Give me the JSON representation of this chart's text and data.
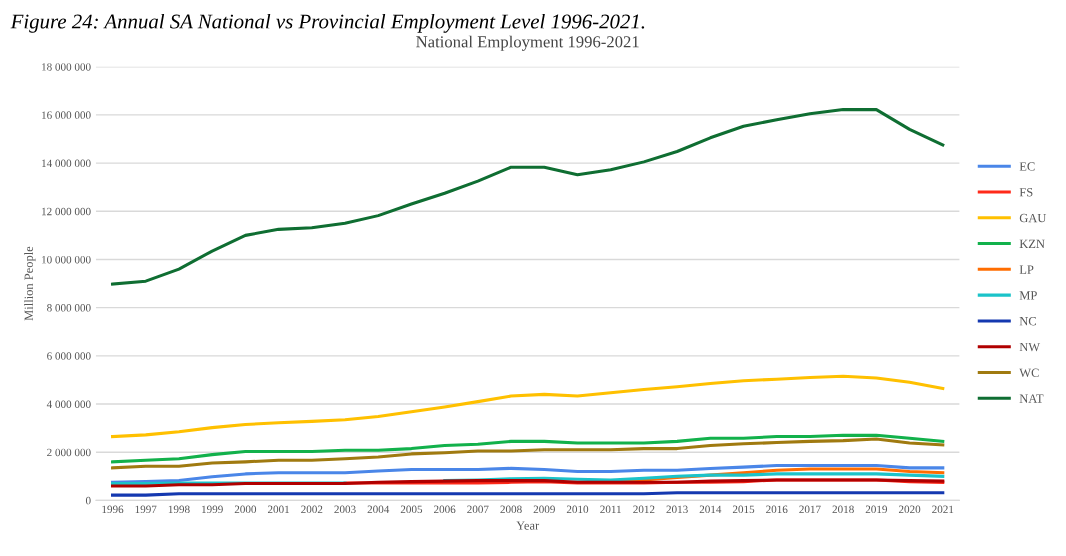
{
  "chart_data": {
    "type": "line",
    "title": "National Employment 1996-2021",
    "xlabel": "Year",
    "ylabel": "Million People",
    "annotations": [
      "Figure 24: Annual SA National vs Provincial Employment Level 1996-2021."
    ],
    "categories": [
      "1996",
      "1997",
      "1998",
      "1999",
      "2000",
      "2001",
      "2002",
      "2003",
      "2004",
      "2005",
      "2006",
      "2007",
      "2008",
      "2009",
      "2010",
      "2011",
      "2012",
      "2013",
      "2014",
      "2015",
      "2016",
      "2017",
      "2018",
      "2019",
      "2020",
      "2021"
    ],
    "ylim": [
      0,
      18000000
    ],
    "yticks": [
      0,
      {
        "value": 2000000,
        "label": "2 000 000"
      },
      {
        "value": 4000000,
        "label": "4 000 000"
      },
      {
        "value": 6000000,
        "label": "6 000 000"
      },
      {
        "value": 8000000,
        "label": "8 000 000"
      },
      {
        "value": 10000000,
        "label": "10 000 000"
      },
      {
        "value": 12000000,
        "label": "12 000 000"
      },
      {
        "value": 14000000,
        "label": "14 000 000"
      },
      {
        "value": 16000000,
        "label": "16 000 000"
      },
      {
        "value": 18000000,
        "label": "18 000 000"
      }
    ],
    "grid": "y",
    "legend": "right",
    "marker": "none",
    "line_style": "solid",
    "series": [
      {
        "name": "EC",
        "color": "#4a86e8",
        "values": [
          750000,
          780000,
          830000,
          980000,
          1100000,
          1150000,
          1150000,
          1150000,
          1220000,
          1280000,
          1280000,
          1280000,
          1330000,
          1280000,
          1200000,
          1200000,
          1250000,
          1250000,
          1320000,
          1380000,
          1450000,
          1450000,
          1450000,
          1450000,
          1350000,
          1350000
        ]
      },
      {
        "name": "FS",
        "color": "#ff2a1a",
        "values": [
          null,
          null,
          null,
          null,
          null,
          null,
          null,
          720000,
          720000,
          720000,
          720000,
          720000,
          750000,
          780000,
          720000,
          720000,
          720000,
          750000,
          750000,
          780000,
          850000,
          850000,
          850000,
          850000,
          780000,
          750000
        ]
      },
      {
        "name": "GAU",
        "color": "#ffc000",
        "values": [
          2650000,
          2720000,
          2850000,
          3020000,
          3150000,
          3220000,
          3280000,
          3350000,
          3480000,
          3680000,
          3880000,
          4100000,
          4330000,
          4400000,
          4330000,
          4470000,
          4600000,
          4720000,
          4850000,
          4970000,
          5030000,
          5100000,
          5150000,
          5080000,
          4900000,
          4650000
        ]
      },
      {
        "name": "KZN",
        "color": "#12b14b",
        "values": [
          1600000,
          1670000,
          1730000,
          1900000,
          2030000,
          2030000,
          2030000,
          2080000,
          2080000,
          2150000,
          2280000,
          2330000,
          2450000,
          2450000,
          2380000,
          2380000,
          2380000,
          2450000,
          2580000,
          2580000,
          2650000,
          2650000,
          2700000,
          2700000,
          2580000,
          2450000
        ]
      },
      {
        "name": "LP",
        "color": "#ff6d01",
        "values": [
          null,
          null,
          null,
          null,
          null,
          null,
          null,
          null,
          null,
          null,
          null,
          null,
          null,
          null,
          null,
          800000,
          850000,
          950000,
          1050000,
          1150000,
          1250000,
          1300000,
          1300000,
          1300000,
          1200000,
          1150000
        ]
      },
      {
        "name": "MP",
        "color": "#1bc3c9",
        "values": [
          700000,
          700000,
          720000,
          720000,
          720000,
          720000,
          720000,
          720000,
          null,
          null,
          820000,
          850000,
          900000,
          920000,
          880000,
          850000,
          920000,
          1000000,
          1050000,
          1050000,
          1100000,
          1100000,
          1100000,
          1100000,
          1050000,
          1000000
        ]
      },
      {
        "name": "NC",
        "color": "#1438b0",
        "values": [
          220000,
          220000,
          280000,
          280000,
          280000,
          280000,
          280000,
          280000,
          280000,
          280000,
          280000,
          280000,
          280000,
          280000,
          280000,
          280000,
          280000,
          320000,
          320000,
          320000,
          320000,
          320000,
          320000,
          320000,
          320000,
          320000
        ]
      },
      {
        "name": "NW",
        "color": "#b00000",
        "values": [
          600000,
          600000,
          650000,
          650000,
          700000,
          700000,
          700000,
          700000,
          750000,
          780000,
          800000,
          820000,
          820000,
          820000,
          750000,
          750000,
          750000,
          750000,
          800000,
          820000,
          850000,
          850000,
          850000,
          850000,
          820000,
          800000
        ]
      },
      {
        "name": "WC",
        "color": "#a07a10",
        "values": [
          1350000,
          1420000,
          1420000,
          1550000,
          1600000,
          1670000,
          1670000,
          1730000,
          1800000,
          1930000,
          1980000,
          2050000,
          2050000,
          2100000,
          2100000,
          2100000,
          2150000,
          2150000,
          2280000,
          2350000,
          2400000,
          2450000,
          2480000,
          2550000,
          2380000,
          2300000
        ]
      },
      {
        "name": "NAT",
        "color": "#0f6e32",
        "values": [
          8980000,
          9100000,
          9600000,
          10350000,
          11000000,
          11250000,
          11320000,
          11500000,
          11820000,
          12300000,
          12750000,
          13250000,
          13830000,
          13830000,
          13520000,
          13720000,
          14050000,
          14480000,
          15050000,
          15530000,
          15800000,
          16050000,
          16220000,
          16220000,
          15400000,
          14750000
        ]
      }
    ]
  }
}
